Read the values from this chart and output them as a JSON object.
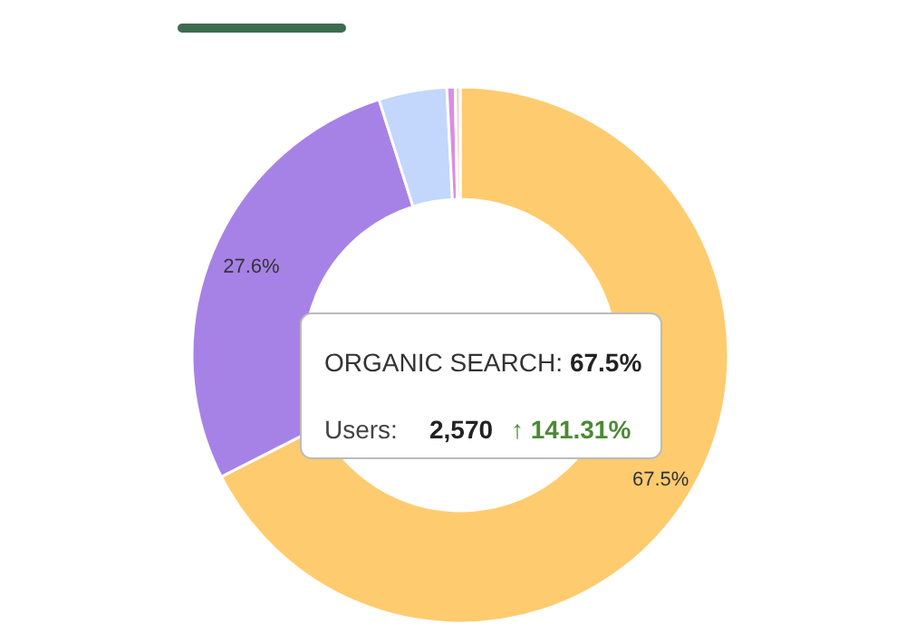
{
  "chart_data": {
    "type": "donut",
    "categories": [
      null,
      null,
      null,
      null,
      null
    ],
    "values": [
      67.5,
      27.6,
      4.1,
      0.5,
      0.3
    ],
    "colors": [
      "#ffcb6f",
      "#a782e6",
      "#c3d7fc",
      "#d98ee0",
      "#f7d0c4"
    ],
    "value_labels": [
      "67.5%",
      "27.6%",
      null,
      null,
      null
    ],
    "annotations": [
      "ORGANIC SEARCH:",
      "67.5%",
      "Users:",
      "2,570",
      "↑ 141.31%"
    ]
  }
}
